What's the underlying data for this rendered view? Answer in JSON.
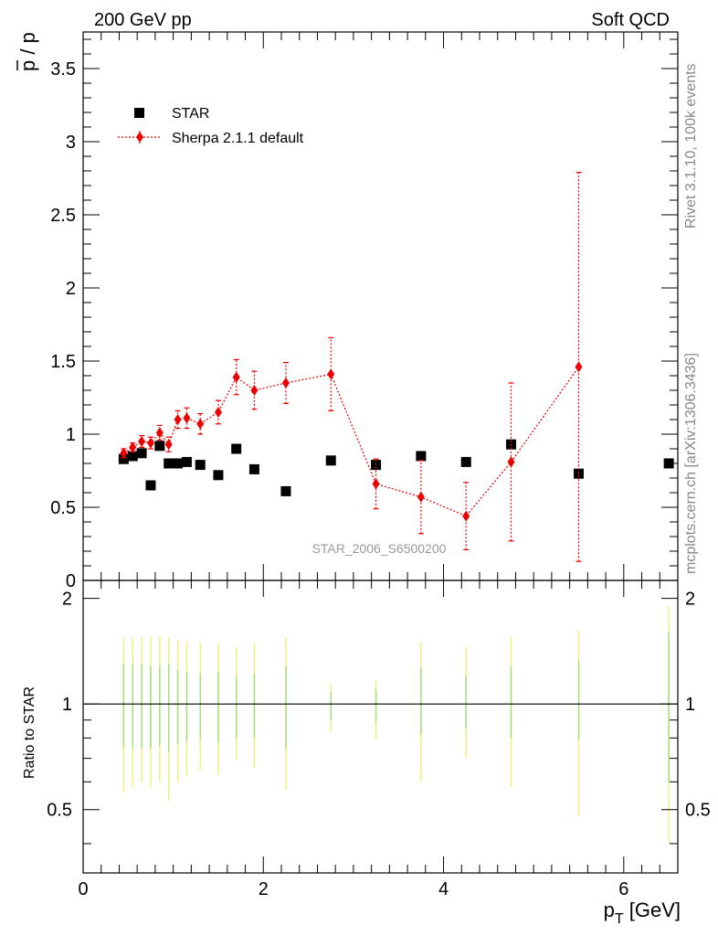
{
  "header": {
    "left": "200 GeV pp",
    "right": "Soft QCD"
  },
  "side": {
    "rivet": "Rivet 3.1.10,  100k events",
    "mcplots": "mcplots.cern.ch [arXiv:1306.3436]"
  },
  "watermark": "STAR_2006_S6500200",
  "colors": {
    "data": "#000000",
    "mc": "#ee0000",
    "band_yellow": "#f0f080",
    "band_green": "#a0e080"
  },
  "chart_data": [
    {
      "type": "scatter",
      "panel": "main",
      "ylabel_bar": "p",
      "ylabel_rest": " / p",
      "ylim": [
        0,
        3.75
      ],
      "xlim": [
        0,
        6.6
      ],
      "yticks": [
        {
          "v": 0,
          "label": "0"
        },
        {
          "v": 0.5,
          "label": "0.5"
        },
        {
          "v": 1,
          "label": "1"
        },
        {
          "v": 1.5,
          "label": "1.5"
        },
        {
          "v": 2,
          "label": "2"
        },
        {
          "v": 2.5,
          "label": "2.5"
        },
        {
          "v": 3,
          "label": "3"
        },
        {
          "v": 3.5,
          "label": "3.5"
        }
      ],
      "legend": {
        "placement": "top-left",
        "entries": [
          "STAR",
          "Sherpa 2.1.1 default"
        ]
      },
      "series": [
        {
          "name": "STAR",
          "marker": "square",
          "x": [
            0.45,
            0.55,
            0.65,
            0.75,
            0.85,
            0.95,
            1.05,
            1.15,
            1.3,
            1.5,
            1.7,
            1.9,
            2.25,
            2.75,
            3.25,
            3.75,
            4.25,
            4.75,
            5.5,
            6.5
          ],
          "y": [
            0.83,
            0.85,
            0.87,
            0.65,
            0.92,
            0.8,
            0.8,
            0.81,
            0.79,
            0.72,
            0.9,
            0.76,
            0.61,
            0.82,
            0.79,
            0.85,
            0.81,
            0.93,
            0.73,
            0.8
          ]
        },
        {
          "name": "Sherpa 2.1.1 default",
          "marker": "diamond",
          "x": [
            0.45,
            0.55,
            0.65,
            0.75,
            0.85,
            0.95,
            1.05,
            1.15,
            1.3,
            1.5,
            1.7,
            1.9,
            2.25,
            2.75,
            3.25,
            3.75,
            4.25,
            4.75,
            5.5
          ],
          "y": [
            0.87,
            0.91,
            0.95,
            0.94,
            1.01,
            0.93,
            1.1,
            1.11,
            1.07,
            1.15,
            1.39,
            1.3,
            1.35,
            1.41,
            0.66,
            0.57,
            0.44,
            0.81,
            1.46
          ],
          "err": [
            0.03,
            0.03,
            0.04,
            0.04,
            0.05,
            0.05,
            0.06,
            0.07,
            0.07,
            0.08,
            0.12,
            0.13,
            0.14,
            0.25,
            0.17,
            0.25,
            0.23,
            0.54,
            1.33
          ]
        }
      ]
    },
    {
      "type": "band",
      "panel": "ratio",
      "ylabel": "Ratio to STAR",
      "xlabel_main": "p",
      "xlabel_sub": "T",
      "xlabel_unit": " [GeV]",
      "ylim": [
        0.33,
        2.25
      ],
      "xlim": [
        0,
        6.6
      ],
      "yticks": [
        {
          "v": 0.5,
          "label": "0.5"
        },
        {
          "v": 1,
          "label": "1"
        },
        {
          "v": 2,
          "label": "2"
        }
      ],
      "xticks": [
        {
          "v": 0,
          "label": "0"
        },
        {
          "v": 2,
          "label": "2"
        },
        {
          "v": 4,
          "label": "4"
        },
        {
          "v": 6,
          "label": "6"
        }
      ],
      "x": [
        0.45,
        0.55,
        0.65,
        0.75,
        0.85,
        0.95,
        1.05,
        1.15,
        1.3,
        1.5,
        1.7,
        1.9,
        2.25,
        2.75,
        3.25,
        3.75,
        4.25,
        4.75,
        5.5,
        6.5
      ],
      "yellow_lo": [
        0.56,
        0.58,
        0.6,
        0.58,
        0.6,
        0.53,
        0.6,
        0.62,
        0.65,
        0.63,
        0.69,
        0.66,
        0.57,
        0.83,
        0.79,
        0.6,
        0.7,
        0.58,
        0.48,
        0.4
      ],
      "yellow_hi": [
        1.55,
        1.55,
        1.55,
        1.55,
        1.56,
        1.55,
        1.52,
        1.5,
        1.5,
        1.49,
        1.45,
        1.49,
        1.55,
        1.14,
        1.17,
        1.5,
        1.45,
        1.55,
        1.63,
        1.9
      ],
      "green_lo": [
        0.75,
        0.75,
        0.75,
        0.75,
        0.76,
        0.73,
        0.77,
        0.78,
        0.8,
        0.78,
        0.8,
        0.8,
        0.75,
        0.9,
        0.89,
        0.82,
        0.85,
        0.8,
        0.79,
        0.6
      ],
      "green_hi": [
        1.3,
        1.3,
        1.3,
        1.28,
        1.28,
        1.3,
        1.25,
        1.23,
        1.22,
        1.23,
        1.2,
        1.22,
        1.28,
        1.08,
        1.1,
        1.27,
        1.2,
        1.28,
        1.33,
        1.6
      ]
    }
  ]
}
